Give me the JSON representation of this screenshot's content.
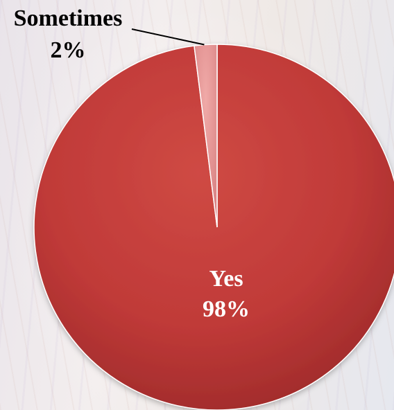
{
  "chart_data": {
    "type": "pie",
    "slices": [
      {
        "label": "Yes",
        "value": 98,
        "value_text": "98%",
        "color": "#c43b3b"
      },
      {
        "label": "Sometimes",
        "value": 2,
        "value_text": "2%",
        "color": "#e08a8a"
      }
    ],
    "legend": "none",
    "title": ""
  }
}
